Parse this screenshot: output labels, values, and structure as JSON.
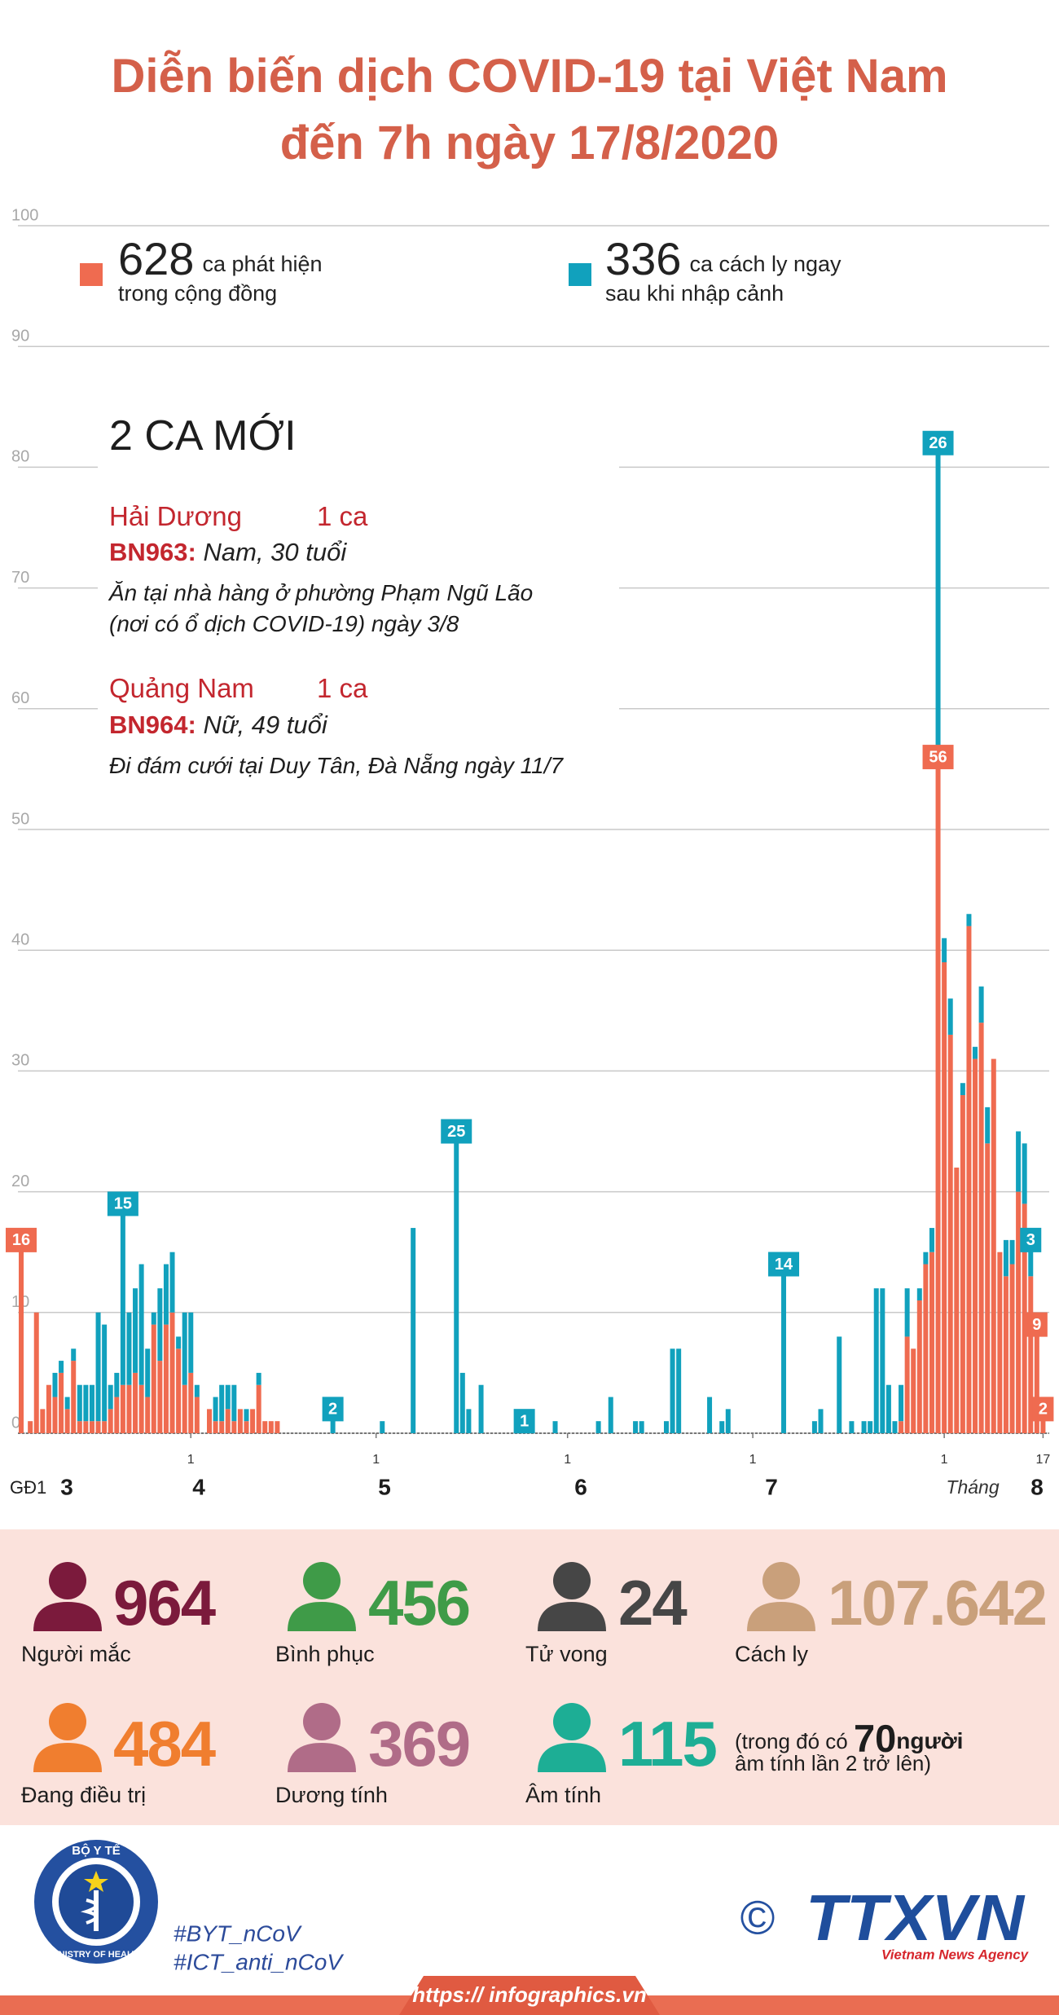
{
  "header": {
    "title_lines": [
      "Diễn biến dịch COVID-19 tại Việt Nam",
      "đến 7h ngày 17/8/2020"
    ]
  },
  "chart_data": {
    "type": "bar",
    "stacked": true,
    "grid": true,
    "phase1": {
      "label": "GĐ1",
      "value": 16
    },
    "x": [
      5,
      6,
      7,
      8,
      9,
      10,
      11,
      12,
      13,
      14,
      15,
      16,
      17,
      18,
      19,
      20,
      21,
      22,
      23,
      24,
      25,
      26,
      27,
      28,
      29,
      30,
      31,
      32,
      34,
      35,
      36,
      37,
      38,
      39,
      40,
      41,
      42,
      43,
      44,
      45,
      54,
      62,
      67,
      74,
      75,
      76,
      78,
      84,
      85,
      86,
      90,
      97,
      99,
      103,
      104,
      108,
      109,
      110,
      115,
      117,
      118,
      127,
      132,
      133,
      136,
      138,
      140,
      141,
      142,
      143,
      144,
      145,
      146,
      147,
      148,
      149,
      150,
      151,
      152,
      153,
      154,
      155,
      156,
      157,
      158,
      159,
      160,
      161,
      162,
      163,
      164,
      165,
      166,
      167,
      168,
      169
    ],
    "series": [
      {
        "name": "ca phát hiện trong cộng đồng",
        "total": 628,
        "color": "#ef6b50",
        "values": [
          1,
          10,
          2,
          4,
          3,
          5,
          2,
          6,
          1,
          1,
          1,
          1,
          1,
          2,
          3,
          4,
          4,
          5,
          4,
          3,
          9,
          6,
          9,
          10,
          7,
          4,
          5,
          3,
          2,
          1,
          1,
          2,
          1,
          2,
          1,
          2,
          4,
          1,
          1,
          1,
          0,
          0,
          0,
          0,
          0,
          0,
          0,
          0,
          0,
          0,
          0,
          0,
          0,
          0,
          0,
          0,
          0,
          0,
          0,
          0,
          0,
          0,
          0,
          0,
          0,
          0,
          0,
          0,
          0,
          0,
          0,
          0,
          1,
          8,
          7,
          11,
          14,
          15,
          56,
          39,
          33,
          22,
          28,
          42,
          31,
          34,
          24,
          31,
          15,
          13,
          14,
          20,
          19,
          13,
          9,
          2
        ],
        "value_labels": [
          null,
          null,
          null,
          null,
          null,
          null,
          null,
          null,
          null,
          null,
          null,
          null,
          null,
          null,
          null,
          null,
          null,
          null,
          null,
          null,
          null,
          null,
          null,
          null,
          null,
          null,
          null,
          null,
          null,
          null,
          null,
          null,
          null,
          null,
          null,
          null,
          null,
          null,
          null,
          null,
          null,
          null,
          null,
          null,
          null,
          null,
          null,
          null,
          null,
          null,
          null,
          null,
          null,
          null,
          null,
          null,
          null,
          null,
          null,
          null,
          null,
          null,
          null,
          null,
          null,
          null,
          null,
          null,
          null,
          null,
          null,
          null,
          null,
          null,
          null,
          null,
          null,
          null,
          "56",
          null,
          null,
          null,
          null,
          null,
          null,
          null,
          null,
          null,
          null,
          null,
          null,
          null,
          null,
          null,
          "9",
          "2"
        ]
      },
      {
        "name": "ca cách ly ngay sau khi nhập cảnh",
        "total": 336,
        "color": "#11a1bd",
        "values": [
          0,
          0,
          0,
          0,
          2,
          1,
          1,
          1,
          3,
          3,
          3,
          9,
          8,
          2,
          2,
          15,
          6,
          7,
          10,
          4,
          1,
          6,
          5,
          5,
          1,
          6,
          5,
          1,
          0,
          2,
          3,
          2,
          3,
          0,
          1,
          0,
          1,
          0,
          0,
          0,
          2,
          1,
          17,
          25,
          5,
          2,
          4,
          1,
          1,
          1,
          1,
          1,
          3,
          1,
          1,
          1,
          7,
          7,
          3,
          1,
          2,
          14,
          1,
          2,
          8,
          1,
          1,
          1,
          12,
          12,
          4,
          1,
          3,
          4,
          0,
          1,
          1,
          2,
          26,
          2,
          3,
          0,
          1,
          1,
          1,
          3,
          3,
          0,
          0,
          3,
          2,
          5,
          5,
          3,
          0,
          0
        ],
        "value_labels": [
          null,
          null,
          null,
          null,
          null,
          null,
          null,
          null,
          null,
          null,
          null,
          null,
          null,
          null,
          null,
          "15",
          null,
          null,
          null,
          null,
          null,
          null,
          null,
          null,
          null,
          null,
          null,
          null,
          null,
          null,
          null,
          null,
          null,
          null,
          null,
          null,
          null,
          null,
          null,
          null,
          "2",
          null,
          null,
          "25",
          null,
          null,
          null,
          null,
          "1",
          null,
          null,
          null,
          null,
          null,
          null,
          null,
          null,
          null,
          null,
          null,
          null,
          "14",
          null,
          null,
          null,
          null,
          null,
          null,
          null,
          null,
          null,
          null,
          null,
          null,
          null,
          null,
          null,
          null,
          "26",
          null,
          null,
          null,
          null,
          null,
          null,
          null,
          null,
          null,
          null,
          null,
          null,
          null,
          null,
          "3",
          null,
          null
        ]
      }
    ],
    "xlim": [
      3,
      170
    ],
    "xticks": [
      {
        "value": 31,
        "label": "1"
      },
      {
        "value": 61,
        "label": "1"
      },
      {
        "value": 92,
        "label": "1"
      },
      {
        "value": 122,
        "label": "1"
      },
      {
        "value": 153,
        "label": "1"
      },
      {
        "value": 169,
        "label": "17"
      }
    ],
    "x_month_labels": [
      "3",
      "4",
      "5",
      "6",
      "7",
      "8"
    ],
    "x_unit_label": "Tháng",
    "ylim": [
      0,
      100
    ],
    "yticks": [
      0,
      10,
      20,
      30,
      40,
      50,
      60,
      70,
      80,
      90,
      100
    ]
  },
  "notice": {
    "title": "2 CA MỚI",
    "cases": [
      {
        "province": "Hải Dương",
        "count": "1 ca",
        "patient": "BN963:",
        "info": "Nam, 30 tuổi",
        "description": [
          "Ăn tại nhà hàng ở phường Phạm Ngũ Lão",
          "(nơi có ổ dịch COVID-19) ngày 3/8"
        ]
      },
      {
        "province": "Quảng Nam",
        "count": "1 ca",
        "patient": "BN964:",
        "info": "Nữ, 49 tuổi",
        "description": [
          "Đi đám cưới tại Duy Tân, Đà Nẵng ngày 11/7"
        ]
      }
    ]
  },
  "stats": [
    {
      "value": 964,
      "label": "Người mắc",
      "color": "#7b1a3c"
    },
    {
      "value": 456,
      "label": "Bình phục",
      "color": "#3f9b48"
    },
    {
      "value": 24,
      "label": "Tử vong",
      "color": "#464646"
    },
    {
      "value": "107.642",
      "label": "Cách ly",
      "color": "#c9a07b"
    },
    {
      "value": 484,
      "label": "Đang điều trị",
      "color": "#f07e2f"
    },
    {
      "value": 369,
      "label": "Dương tính",
      "color": "#b06c88"
    },
    {
      "value": 115,
      "label": "Âm tính",
      "color": "#1dae95"
    }
  ],
  "negative_note": {
    "prefix": "(trong đó có",
    "value": 70,
    "unit": "người",
    "suffix": "âm tính lần 2 trở lên)"
  },
  "footer": {
    "ministry_top": "BỘ Y TẾ",
    "ministry_bottom": "MINISTRY OF HEALTH",
    "hashtags": [
      "#BYT_nCoV",
      "#ICT_anti_nCoV"
    ],
    "copyright": "©",
    "agency": "TTXVN",
    "agency_sub": "Vietnam News Agency",
    "url": "https:// infographics.vn"
  }
}
